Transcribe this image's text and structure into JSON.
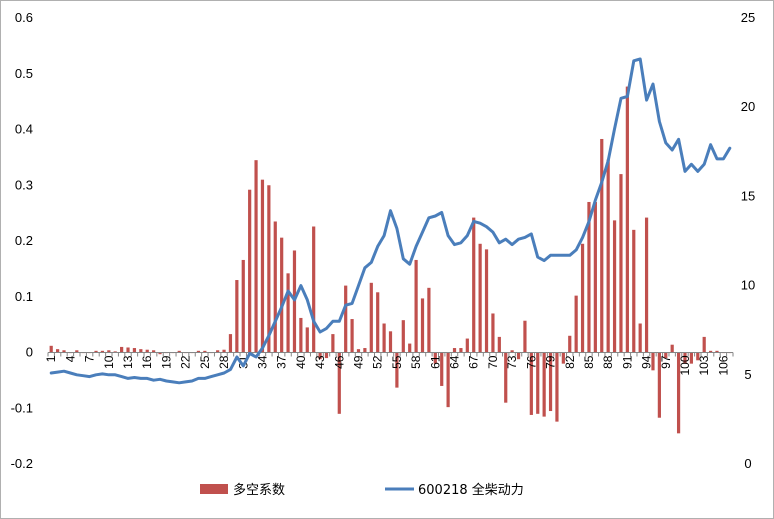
{
  "chart_data": {
    "type": "bar",
    "title": "",
    "xlabel": "",
    "ylabel_left": "",
    "ylabel_right": "",
    "x": [
      1,
      2,
      3,
      4,
      5,
      6,
      7,
      8,
      9,
      10,
      11,
      12,
      13,
      14,
      15,
      16,
      17,
      18,
      19,
      20,
      21,
      22,
      23,
      24,
      25,
      26,
      27,
      28,
      29,
      30,
      31,
      32,
      33,
      34,
      35,
      36,
      37,
      38,
      39,
      40,
      41,
      42,
      43,
      44,
      45,
      46,
      47,
      48,
      49,
      50,
      51,
      52,
      53,
      54,
      55,
      56,
      57,
      58,
      59,
      60,
      61,
      62,
      63,
      64,
      65,
      66,
      67,
      68,
      69,
      70,
      71,
      72,
      73,
      74,
      75,
      76,
      77,
      78,
      79,
      80,
      81,
      82,
      83,
      84,
      85,
      86,
      87,
      88,
      89,
      90,
      91,
      92,
      93,
      94,
      95,
      96,
      97,
      98,
      99,
      100,
      101,
      102,
      103,
      104,
      105,
      106,
      107
    ],
    "x_tick_labels": [
      "1",
      "4",
      "7",
      "10",
      "13",
      "16",
      "19",
      "22",
      "25",
      "28",
      "31",
      "34",
      "37",
      "40",
      "43",
      "46",
      "49",
      "52",
      "55",
      "58",
      "61",
      "64",
      "67",
      "70",
      "73",
      "76",
      "79",
      "82",
      "85",
      "88",
      "91",
      "94",
      "97",
      "100",
      "103",
      "106"
    ],
    "left_axis": {
      "ylim": [
        -0.2,
        0.6
      ],
      "ticks": [
        "-0.2",
        "-0.1",
        "0",
        "0.1",
        "0.2",
        "0.3",
        "0.4",
        "0.5",
        "0.6"
      ]
    },
    "right_axis": {
      "ylim": [
        0,
        25
      ],
      "ticks": [
        "0",
        "5",
        "10",
        "15",
        "20",
        "25"
      ]
    },
    "grid": false,
    "legend_position": "bottom",
    "series": [
      {
        "name": "多空系数",
        "type": "bar",
        "axis": "left",
        "color": "#c0504d",
        "values": [
          0.012,
          0.006,
          0.004,
          0,
          0.004,
          0,
          0,
          0.003,
          0.003,
          0.004,
          0.002,
          0.01,
          0.009,
          0.008,
          0.006,
          0.005,
          0.004,
          -0.003,
          0,
          0,
          0.003,
          0,
          0,
          0.003,
          0.003,
          0,
          0.004,
          0.005,
          0.033,
          0.13,
          0.166,
          0.292,
          0.345,
          0.31,
          0.3,
          0.235,
          0.206,
          0.142,
          0.183,
          0.062,
          0.045,
          0.226,
          -0.012,
          -0.01,
          0.033,
          -0.11,
          0.12,
          0.06,
          0.006,
          0.008,
          0.125,
          0.108,
          0.052,
          0.038,
          -0.063,
          0.058,
          0.016,
          0.166,
          0.097,
          0.116,
          -0.02,
          -0.06,
          -0.098,
          0.008,
          0.008,
          0.025,
          0.242,
          0.195,
          0.185,
          0.07,
          0.028,
          -0.09,
          0.004,
          -0.012,
          0.057,
          -0.112,
          -0.11,
          -0.115,
          -0.105,
          -0.124,
          -0.02,
          0.03,
          0.102,
          0.195,
          0.27,
          0.27,
          0.383,
          0.346,
          0.237,
          0.32,
          0.477,
          0.22,
          0.052,
          0.242,
          -0.032,
          -0.117,
          -0.01,
          0.014,
          -0.145,
          -0.02,
          -0.02,
          -0.014,
          0.028,
          0.003,
          0.003,
          0.0,
          0.0
        ]
      },
      {
        "name": "600218 全柴动力",
        "type": "line",
        "axis": "right",
        "color": "#4a7ebb",
        "values": [
          5.1,
          5.15,
          5.2,
          5.1,
          5.0,
          4.95,
          4.9,
          5.0,
          5.05,
          5.0,
          5.0,
          4.9,
          4.8,
          4.85,
          4.8,
          4.8,
          4.7,
          4.75,
          4.65,
          4.6,
          4.55,
          4.6,
          4.65,
          4.8,
          4.8,
          4.9,
          5.0,
          5.1,
          5.3,
          6.0,
          5.5,
          6.2,
          6.0,
          6.5,
          7.2,
          8.0,
          8.8,
          9.7,
          9.2,
          10.0,
          9.2,
          8.0,
          7.4,
          7.6,
          8.0,
          8.0,
          8.9,
          9.0,
          10.0,
          11.0,
          11.3,
          12.2,
          12.8,
          14.2,
          13.2,
          11.5,
          11.2,
          12.2,
          13.0,
          13.8,
          13.9,
          14.1,
          12.8,
          12.3,
          12.4,
          12.8,
          13.6,
          13.5,
          13.3,
          13.0,
          12.4,
          12.6,
          12.3,
          12.6,
          12.7,
          12.9,
          11.6,
          11.4,
          11.7,
          11.7,
          11.7,
          11.7,
          12.0,
          12.7,
          13.6,
          14.8,
          15.8,
          17.0,
          18.8,
          20.5,
          20.6,
          22.6,
          22.7,
          20.4,
          21.3,
          19.2,
          18.0,
          17.6,
          18.2,
          16.4,
          16.8,
          16.4,
          16.8,
          17.9,
          17.1,
          17.1,
          17.7
        ]
      }
    ]
  }
}
